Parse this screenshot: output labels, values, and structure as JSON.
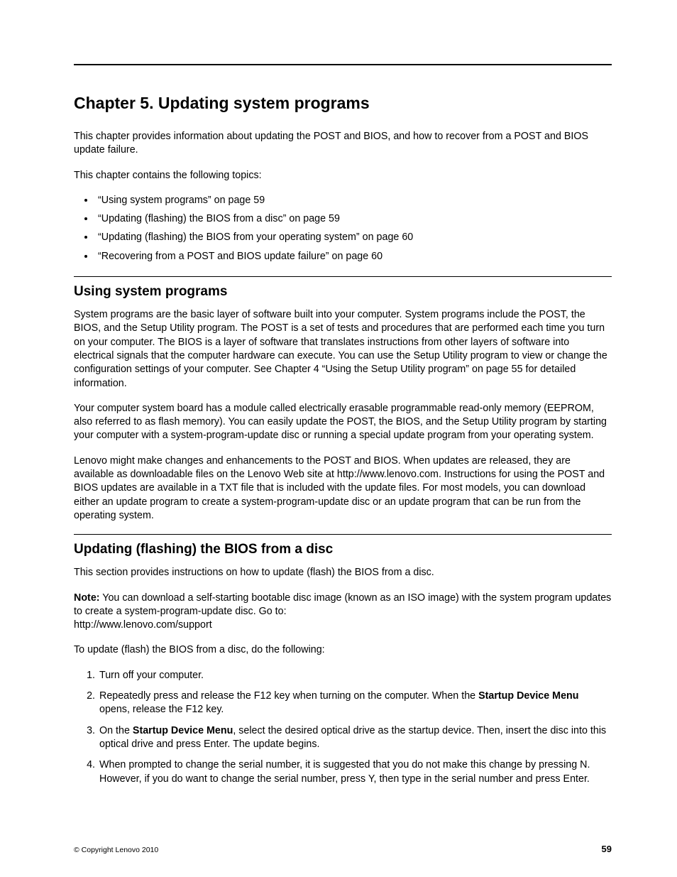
{
  "chapter": {
    "title": "Chapter 5.   Updating system programs"
  },
  "intro": {
    "p1": "This chapter provides information about updating the POST and BIOS, and how to recover from a POST and BIOS update failure.",
    "p2": "This chapter contains the following topics:"
  },
  "toc": {
    "items": [
      "“Using system programs” on page 59",
      "“Updating (flashing) the BIOS from a disc” on page 59",
      "“Updating (flashing) the BIOS from your operating system” on page 60",
      "“Recovering from a POST and BIOS update failure” on page 60"
    ]
  },
  "section1": {
    "heading": "Using system programs",
    "p1": "System programs are the basic layer of software built into your computer. System programs include the POST, the BIOS, and the Setup Utility program. The POST is a set of tests and procedures that are performed each time you turn on your computer. The BIOS is a layer of software that translates instructions from other layers of software into electrical signals that the computer hardware can execute. You can use the Setup Utility program to view or change the configuration settings of your computer. See Chapter 4 “Using the Setup Utility program” on page 55 for detailed information.",
    "p2": "Your computer system board has a module called electrically erasable programmable read-only memory (EEPROM, also referred to as flash memory). You can easily update the POST, the BIOS, and the Setup Utility program by starting your computer with a system-program-update disc or running a special update program from your operating system.",
    "p3": "Lenovo might make changes and enhancements to the POST and BIOS. When updates are released, they are available as downloadable files on the Lenovo Web site at http://www.lenovo.com. Instructions for using the POST and BIOS updates are available in a TXT file that is included with the update files. For most models, you can download either an update program to create a system-program-update disc or an update program that can be run from the operating system."
  },
  "section2": {
    "heading": "Updating (flashing) the BIOS from a disc",
    "p1": "This section provides instructions on how to update (flash) the BIOS from a disc.",
    "note_label": "Note:",
    "note_text": " You can download a self-starting bootable disc image (known as an ISO image) with the system program updates to create a system-program-update disc. Go to:",
    "note_url": "http://www.lenovo.com/support",
    "p2": "To update (flash) the BIOS from a disc, do the following:",
    "steps": {
      "s1": "Turn off your computer.",
      "s2a": "Repeatedly press and release the F12 key when turning on the computer. When the ",
      "s2b": "Startup Device Menu",
      "s2c": " opens, release the F12 key.",
      "s3a": "On the ",
      "s3b": "Startup Device Menu",
      "s3c": ", select the desired optical drive as the startup device. Then, insert the disc into this optical drive and press Enter. The update begins.",
      "s4": "When prompted to change the serial number, it is suggested that you do not make this change by pressing N. However, if you do want to change the serial number, press Y, then type in the serial number and press Enter."
    }
  },
  "footer": {
    "copyright": "© Copyright Lenovo 2010",
    "page_number": "59"
  }
}
